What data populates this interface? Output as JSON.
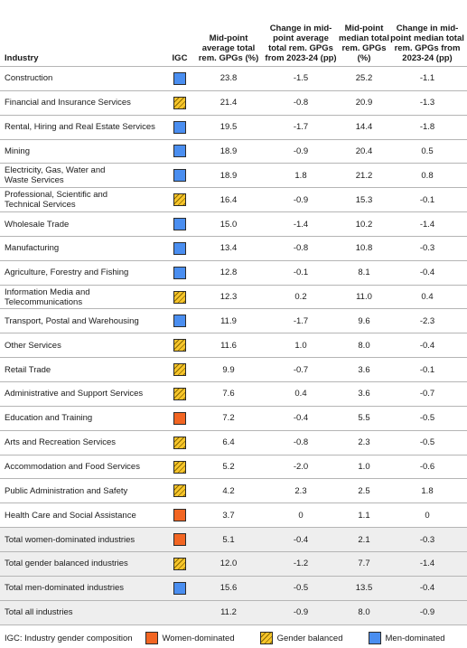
{
  "headers": {
    "industry": "Industry",
    "igc": "IGC",
    "avg": "Mid-point average total rem. GPGs (%)",
    "avg_change": "Change in mid-point average total rem. GPGs from 2023-24 (pp)",
    "median": "Mid-point median total rem. GPGs (%)",
    "median_change": "Change in mid-point median total rem. GPGs from 2023-24 (pp)"
  },
  "colors": {
    "women": "#f26522",
    "balanced": "#f7c52b",
    "men": "#4a8ef0",
    "total_row_bg": "#eeeeee"
  },
  "rows": [
    {
      "industry": "Construction",
      "igc": "men",
      "avg": "23.8",
      "avg_change": "-1.5",
      "median": "25.2",
      "median_change": "-1.1"
    },
    {
      "industry": "Financial and Insurance Services",
      "igc": "balanced",
      "avg": "21.4",
      "avg_change": "-0.8",
      "median": "20.9",
      "median_change": "-1.3"
    },
    {
      "industry": "Rental, Hiring and Real Estate Services",
      "igc": "men",
      "avg": "19.5",
      "avg_change": "-1.7",
      "median": "14.4",
      "median_change": "-1.8"
    },
    {
      "industry": "Mining",
      "igc": "men",
      "avg": "18.9",
      "avg_change": "-0.9",
      "median": "20.4",
      "median_change": "0.5"
    },
    {
      "industry": "Electricity, Gas, Water and\nWaste Services",
      "igc": "men",
      "avg": "18.9",
      "avg_change": "1.8",
      "median": "21.2",
      "median_change": "0.8"
    },
    {
      "industry": "Professional, Scientific and\nTechnical Services",
      "igc": "balanced",
      "avg": "16.4",
      "avg_change": "-0.9",
      "median": "15.3",
      "median_change": "-0.1"
    },
    {
      "industry": "Wholesale Trade",
      "igc": "men",
      "avg": "15.0",
      "avg_change": "-1.4",
      "median": "10.2",
      "median_change": "-1.4"
    },
    {
      "industry": "Manufacturing",
      "igc": "men",
      "avg": "13.4",
      "avg_change": "-0.8",
      "median": "10.8",
      "median_change": "-0.3"
    },
    {
      "industry": "Agriculture, Forestry and Fishing",
      "igc": "men",
      "avg": "12.8",
      "avg_change": "-0.1",
      "median": "8.1",
      "median_change": "-0.4"
    },
    {
      "industry": "Information Media and\nTelecommunications",
      "igc": "balanced",
      "avg": "12.3",
      "avg_change": "0.2",
      "median": "11.0",
      "median_change": "0.4"
    },
    {
      "industry": "Transport, Postal and Warehousing",
      "igc": "men",
      "avg": "11.9",
      "avg_change": "-1.7",
      "median": "9.6",
      "median_change": "-2.3"
    },
    {
      "industry": "Other Services",
      "igc": "balanced",
      "avg": "11.6",
      "avg_change": "1.0",
      "median": "8.0",
      "median_change": "-0.4"
    },
    {
      "industry": "Retail Trade",
      "igc": "balanced",
      "avg": "9.9",
      "avg_change": "-0.7",
      "median": "3.6",
      "median_change": "-0.1"
    },
    {
      "industry": "Administrative and Support Services",
      "igc": "balanced",
      "avg": "7.6",
      "avg_change": "0.4",
      "median": "3.6",
      "median_change": "-0.7"
    },
    {
      "industry": "Education and Training",
      "igc": "women",
      "avg": "7.2",
      "avg_change": "-0.4",
      "median": "5.5",
      "median_change": "-0.5"
    },
    {
      "industry": "Arts and Recreation Services",
      "igc": "balanced",
      "avg": "6.4",
      "avg_change": "-0.8",
      "median": "2.3",
      "median_change": "-0.5"
    },
    {
      "industry": "Accommodation and Food Services",
      "igc": "balanced",
      "avg": "5.2",
      "avg_change": "-2.0",
      "median": "1.0",
      "median_change": "-0.6"
    },
    {
      "industry": "Public Administration and Safety",
      "igc": "balanced",
      "avg": "4.2",
      "avg_change": "2.3",
      "median": "2.5",
      "median_change": "1.8"
    },
    {
      "industry": "Health Care and Social Assistance",
      "igc": "women",
      "avg": "3.7",
      "avg_change": "0",
      "median": "1.1",
      "median_change": "0"
    }
  ],
  "totals": [
    {
      "industry": "Total women-dominated industries",
      "igc": "women",
      "avg": "5.1",
      "avg_change": "-0.4",
      "median": "2.1",
      "median_change": "-0.3"
    },
    {
      "industry": "Total gender balanced industries",
      "igc": "balanced",
      "avg": "12.0",
      "avg_change": "-1.2",
      "median": "7.7",
      "median_change": "-1.4"
    },
    {
      "industry": "Total men-dominated industries",
      "igc": "men",
      "avg": "15.6",
      "avg_change": "-0.5",
      "median": "13.5",
      "median_change": "-0.4"
    },
    {
      "industry": "Total all industries",
      "igc": "",
      "avg": "11.2",
      "avg_change": "-0.9",
      "median": "8.0",
      "median_change": "-0.9"
    }
  ],
  "legend": {
    "title": "IGC: Industry gender composition",
    "women": "Women-dominated",
    "balanced": "Gender balanced",
    "men": "Men-dominated"
  }
}
